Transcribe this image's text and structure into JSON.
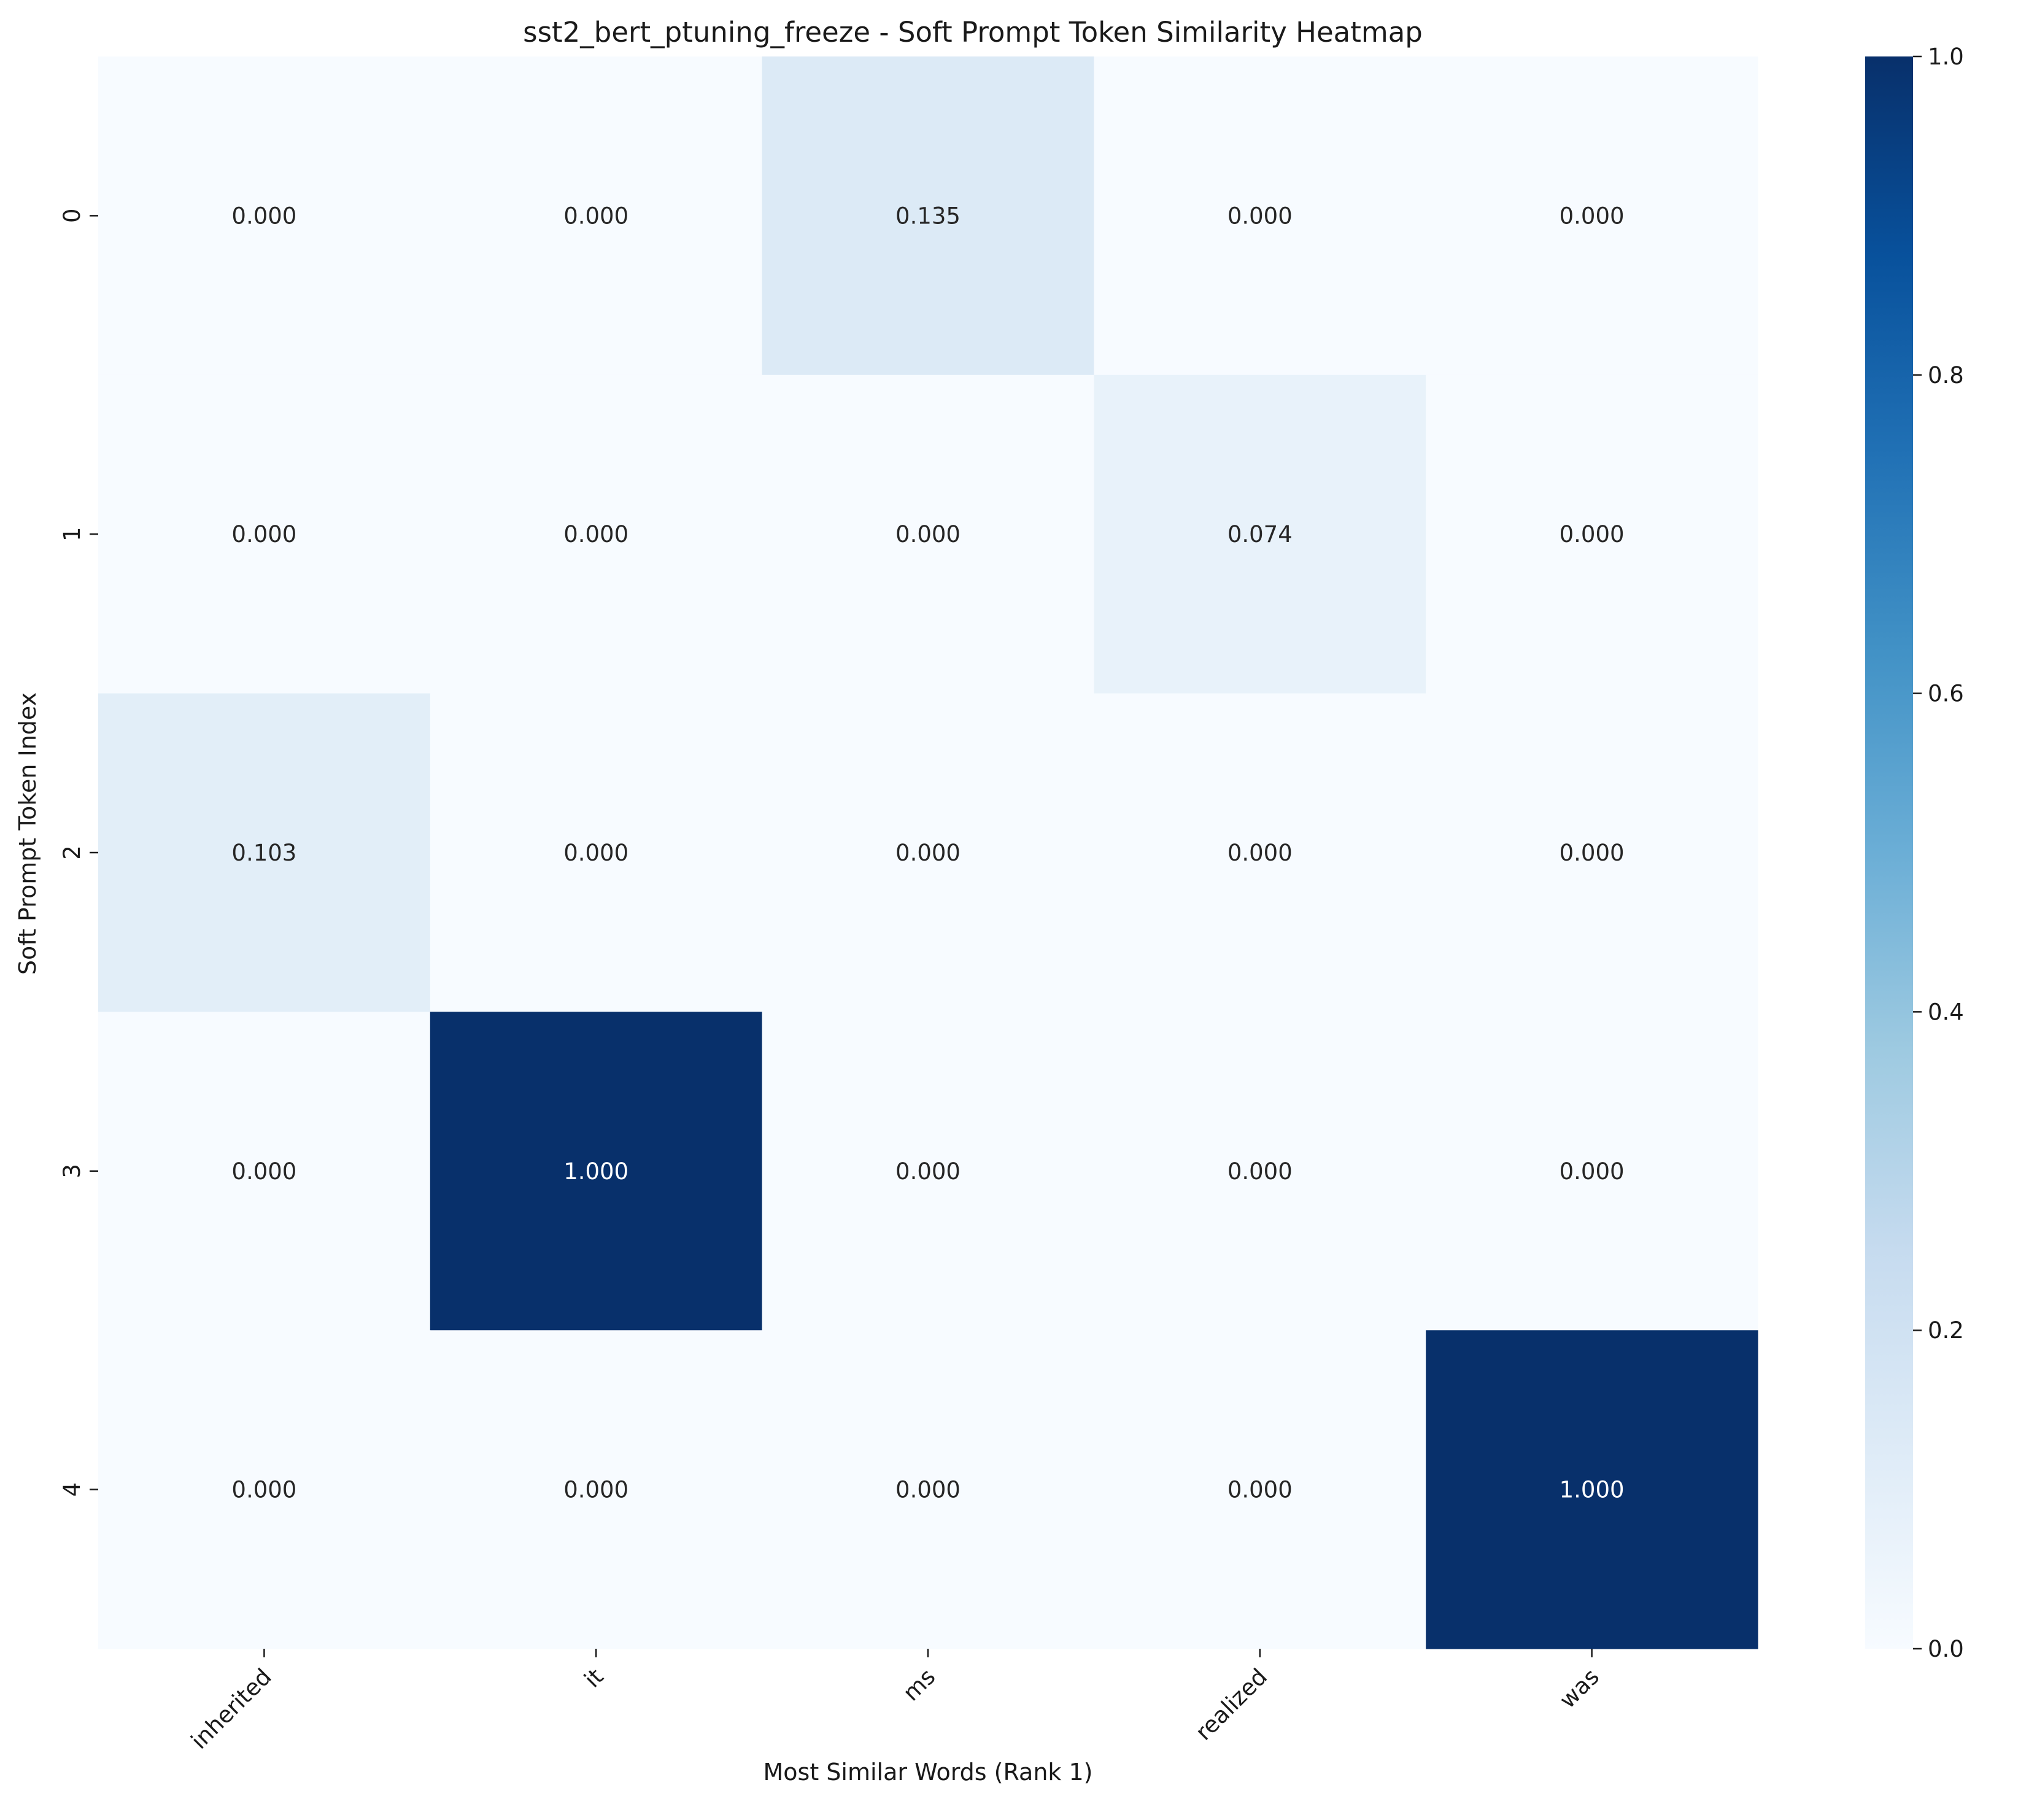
{
  "chart_data": {
    "type": "heatmap",
    "title": "sst2_bert_ptuning_freeze - Soft Prompt Token Similarity Heatmap",
    "xlabel": "Most Similar Words (Rank 1)",
    "ylabel": "Soft Prompt Token Index",
    "x_categories": [
      "inherited",
      "it",
      "ms",
      "realized",
      "was"
    ],
    "y_categories": [
      "0",
      "1",
      "2",
      "3",
      "4"
    ],
    "values": [
      [
        0.0,
        0.0,
        0.135,
        0.0,
        0.0
      ],
      [
        0.0,
        0.0,
        0.0,
        0.074,
        0.0
      ],
      [
        0.103,
        0.0,
        0.0,
        0.0,
        0.0
      ],
      [
        0.0,
        1.0,
        0.0,
        0.0,
        0.0
      ],
      [
        0.0,
        0.0,
        0.0,
        0.0,
        1.0
      ]
    ],
    "cell_labels": [
      [
        "0.000",
        "0.000",
        "0.135",
        "0.000",
        "0.000"
      ],
      [
        "0.000",
        "0.000",
        "0.000",
        "0.074",
        "0.000"
      ],
      [
        "0.103",
        "0.000",
        "0.000",
        "0.000",
        "0.000"
      ],
      [
        "0.000",
        "1.000",
        "0.000",
        "0.000",
        "0.000"
      ],
      [
        "0.000",
        "0.000",
        "0.000",
        "0.000",
        "1.000"
      ]
    ],
    "colorbar": {
      "colormap": "Blues",
      "range": [
        0.0,
        1.0
      ],
      "ticks": [
        "0.0",
        "0.2",
        "0.4",
        "0.6",
        "0.8",
        "1.0"
      ]
    },
    "x_tick_rotation_deg": 45,
    "grid": false
  }
}
